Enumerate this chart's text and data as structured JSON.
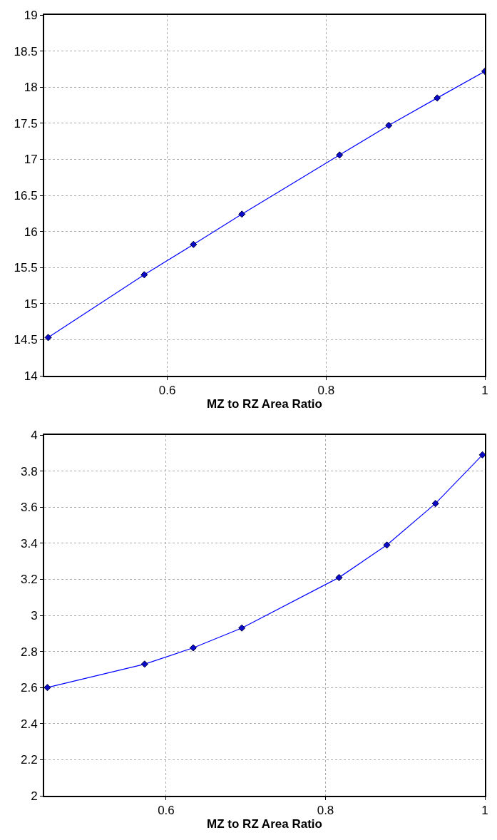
{
  "chart_data": [
    {
      "type": "line",
      "xlabel": "MZ to RZ Area Ratio",
      "x": [
        0.45,
        0.571,
        0.633,
        0.694,
        0.817,
        0.879,
        0.94,
        1.0
      ],
      "series": [
        {
          "color": "#0000ff",
          "values": [
            14.53,
            15.4,
            15.82,
            16.24,
            17.06,
            17.47,
            17.85,
            18.22
          ]
        }
      ],
      "xlim": [
        0.445,
        1.0
      ],
      "xticks": [
        0.6,
        0.8,
        1
      ],
      "ylim": [
        14,
        19
      ],
      "yticks": [
        14,
        14.5,
        15,
        15.5,
        16,
        16.5,
        17,
        17.5,
        18,
        18.5,
        19
      ],
      "grid": true,
      "marker": "diamond",
      "line_style": "solid"
    },
    {
      "type": "line",
      "xlabel": "MZ to RZ Area Ratio",
      "x": [
        0.451,
        0.573,
        0.634,
        0.695,
        0.817,
        0.877,
        0.938,
        0.997
      ],
      "series": [
        {
          "color": "#0000ff",
          "values": [
            2.6,
            2.73,
            2.82,
            2.93,
            3.21,
            3.39,
            3.62,
            3.89
          ]
        }
      ],
      "xlim": [
        0.447,
        1.0
      ],
      "xticks": [
        0.6,
        0.8,
        1
      ],
      "ylim": [
        2,
        4
      ],
      "yticks": [
        2,
        2.2,
        2.4,
        2.6,
        2.8,
        3,
        3.2,
        3.4,
        3.6,
        3.8,
        4
      ],
      "grid": true,
      "marker": "diamond",
      "line_style": "solid"
    }
  ]
}
